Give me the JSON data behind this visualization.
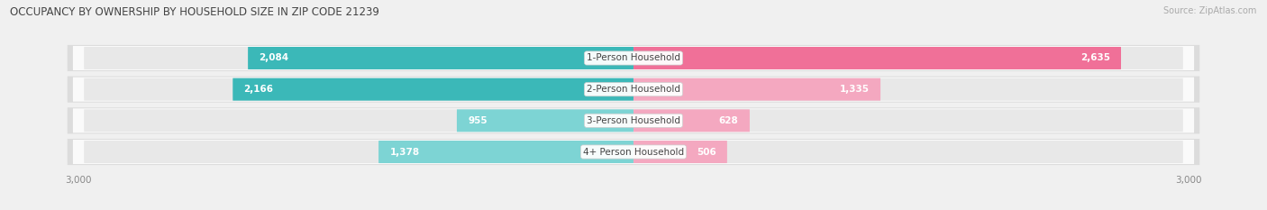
{
  "title": "OCCUPANCY BY OWNERSHIP BY HOUSEHOLD SIZE IN ZIP CODE 21239",
  "source": "Source: ZipAtlas.com",
  "categories": [
    "1-Person Household",
    "2-Person Household",
    "3-Person Household",
    "4+ Person Household"
  ],
  "owner_values": [
    2084,
    2166,
    955,
    1378
  ],
  "renter_values": [
    2635,
    1335,
    628,
    506
  ],
  "owner_color_dark": "#3BB8B8",
  "owner_color_light": "#7DD4D4",
  "renter_color_dark": "#F07098",
  "renter_color_light": "#F4A8C0",
  "bar_bg_color": "#E8E8E8",
  "row_bg_color": "#FAFAFA",
  "background_color": "#F0F0F0",
  "axis_max": 3000,
  "title_fontsize": 8.5,
  "label_fontsize": 7.5,
  "tick_fontsize": 7.5,
  "source_fontsize": 7,
  "inside_threshold": 400
}
